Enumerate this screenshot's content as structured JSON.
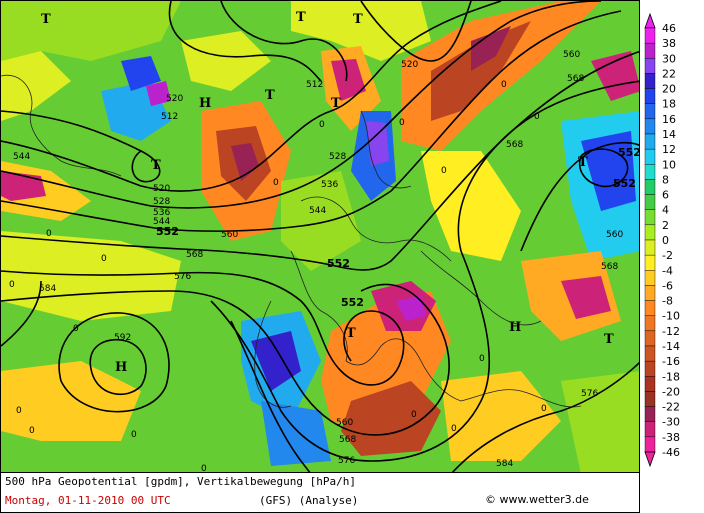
{
  "footer": {
    "title": "500 hPa Geopotential [gpdm], Vertikalbewegung [hPa/h]",
    "date": "Montag, 01-11-2010  00 UTC",
    "model": "(GFS)  (Analyse)",
    "credit": "www.wetter3.de",
    "copyright_symbol": "©"
  },
  "legend": {
    "values": [
      "46",
      "38",
      "30",
      "22",
      "20",
      "18",
      "16",
      "14",
      "12",
      "10",
      "8",
      "6",
      "4",
      "2",
      "0",
      "-2",
      "-4",
      "-6",
      "-8",
      "-10",
      "-12",
      "-14",
      "-16",
      "-18",
      "-20",
      "-22",
      "-30",
      "-38",
      "-46"
    ],
    "colors": [
      "#ee22ee",
      "#bb22cc",
      "#8844ee",
      "#3322cc",
      "#2244ee",
      "#2266ee",
      "#2288ee",
      "#22aaee",
      "#22ccee",
      "#22ddcc",
      "#22cc66",
      "#44cc44",
      "#77dd33",
      "#aaee22",
      "#ddee22",
      "#ffee22",
      "#ffcc22",
      "#ffaa22",
      "#ff8822",
      "#ee7722",
      "#dd6622",
      "#cc5522",
      "#bb4422",
      "#aa3322",
      "#993322",
      "#992255",
      "#cc2277",
      "#ee2299"
    ]
  },
  "map": {
    "contour_labels": [
      "512",
      "520",
      "528",
      "536",
      "544",
      "552",
      "560",
      "568",
      "576",
      "584",
      "592"
    ],
    "bold_labels": [
      "552",
      "552",
      "552",
      "552"
    ],
    "centers": [
      {
        "label": "T"
      },
      {
        "label": "T"
      },
      {
        "label": "T"
      },
      {
        "label": "T"
      },
      {
        "label": "T"
      },
      {
        "label": "T"
      },
      {
        "label": "T"
      },
      {
        "label": "T"
      },
      {
        "label": "T"
      },
      {
        "label": "H"
      },
      {
        "label": "H"
      },
      {
        "label": "H"
      }
    ],
    "small_labels": [
      "0",
      "0",
      "0",
      "0",
      "0",
      "0",
      "0",
      "0",
      "0",
      "0",
      "0",
      "0",
      "0",
      "0",
      "0",
      "0",
      "0",
      "0"
    ]
  }
}
